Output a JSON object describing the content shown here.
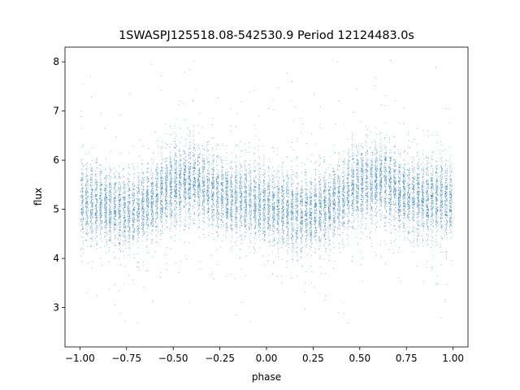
{
  "chart_data": {
    "type": "scatter",
    "title": "1SWASPJ125518.08-542530.9 Period 12124483.0s",
    "xlabel": "phase",
    "ylabel": "flux",
    "xlim": [
      -1.08,
      1.08
    ],
    "ylim": [
      2.2,
      8.3
    ],
    "xticks": [
      -1.0,
      -0.75,
      -0.5,
      -0.25,
      0.0,
      0.25,
      0.5,
      0.75,
      1.0
    ],
    "xtick_labels": [
      "−1.00",
      "−0.75",
      "−0.50",
      "−0.25",
      "0.00",
      "0.25",
      "0.50",
      "0.75",
      "1.00"
    ],
    "yticks": [
      3,
      4,
      5,
      6,
      7,
      8
    ],
    "ytick_labels": [
      "3",
      "4",
      "5",
      "6",
      "7",
      "8"
    ],
    "grid": false,
    "legend": "none",
    "marker_color": "#1f77b4",
    "profile": {
      "description_points_phase": [
        -1.0,
        -0.9,
        -0.8,
        -0.7,
        -0.6,
        -0.5,
        -0.4,
        -0.3,
        -0.2,
        -0.1,
        0.0,
        0.1,
        0.2,
        0.3,
        0.4,
        0.5,
        0.6,
        0.7,
        0.8,
        0.9,
        1.0
      ],
      "mean_flux": [
        5.2,
        5.1,
        5.0,
        5.0,
        5.2,
        5.5,
        5.6,
        5.4,
        5.2,
        5.2,
        5.1,
        5.0,
        4.9,
        5.0,
        5.2,
        5.5,
        5.6,
        5.4,
        5.2,
        5.2,
        5.2
      ]
    },
    "n_points": 14000
  }
}
